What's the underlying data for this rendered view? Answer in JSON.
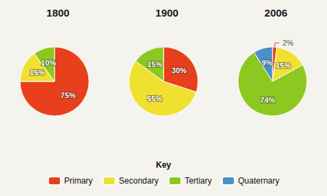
{
  "chart_data": [
    {
      "type": "pie",
      "title": "1800",
      "categories": [
        "Primary",
        "Secondary",
        "Tertiary"
      ],
      "values": [
        75,
        15,
        10
      ],
      "value_labels": [
        "75%",
        "15%",
        "10%"
      ],
      "colors": [
        "#e8401c",
        "#f0e030",
        "#8cc820"
      ],
      "data_labels": true,
      "legend": "bottom"
    },
    {
      "type": "pie",
      "title": "1900",
      "categories": [
        "Primary",
        "Secondary",
        "Tertiary"
      ],
      "values": [
        30,
        55,
        15
      ],
      "value_labels": [
        "30%",
        "55%",
        "15%"
      ],
      "colors": [
        "#e8401c",
        "#f0e030",
        "#8cc820"
      ],
      "data_labels": true,
      "legend": "bottom"
    },
    {
      "type": "pie",
      "title": "2006",
      "categories": [
        "Primary",
        "Secondary",
        "Tertiary",
        "Quaternary"
      ],
      "values": [
        2,
        15,
        74,
        9
      ],
      "value_labels": [
        "2%",
        "15%",
        "74%",
        "9%"
      ],
      "colors": [
        "#e8401c",
        "#f0e030",
        "#8cc820",
        "#4a90c8"
      ],
      "data_labels": true,
      "legend": "bottom",
      "annotations": [
        "Key"
      ]
    }
  ]
}
